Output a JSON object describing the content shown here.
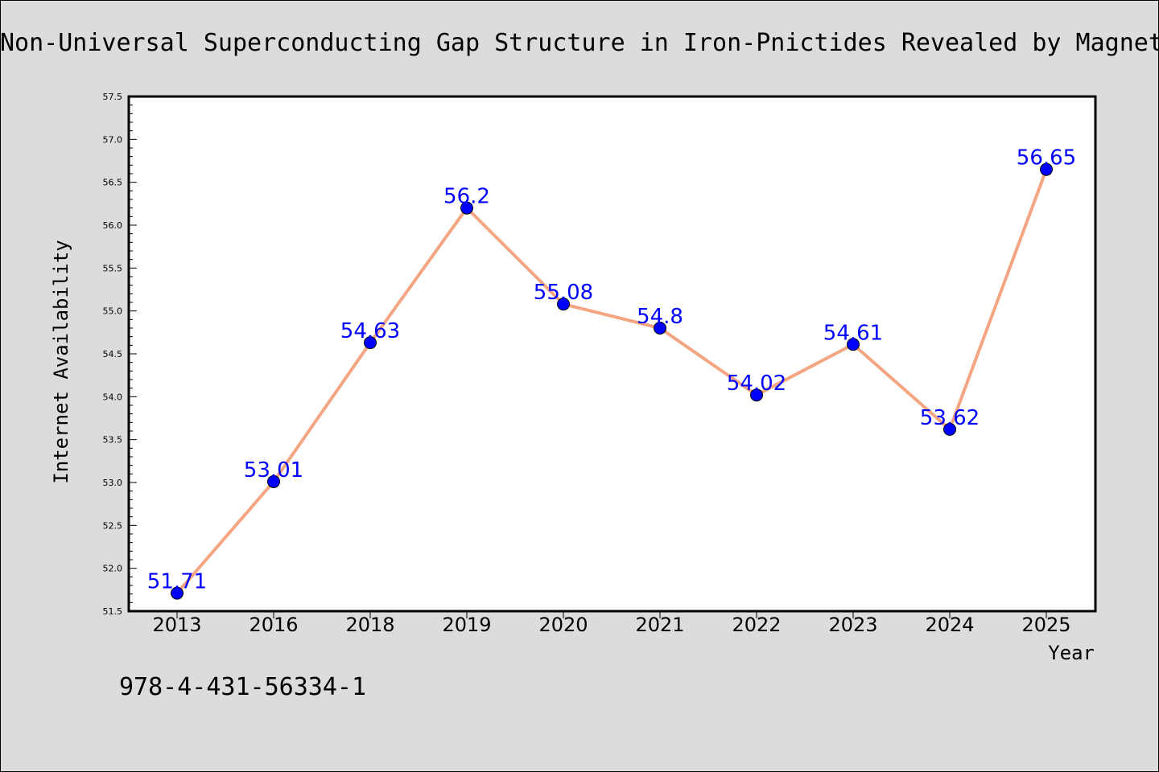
{
  "chart_data": {
    "type": "line",
    "title": "Non-Universal Superconducting Gap Structure in Iron-Pnictides Revealed by Magnet",
    "xlabel": "Year",
    "ylabel": "Internet Availability",
    "categories": [
      "2013",
      "2016",
      "2018",
      "2019",
      "2020",
      "2021",
      "2022",
      "2023",
      "2024",
      "2025"
    ],
    "series": [
      {
        "values": [
          51.71,
          53.01,
          54.63,
          56.2,
          55.08,
          54.8,
          54.02,
          54.61,
          53.62,
          56.65
        ],
        "data_labels": [
          "51.71",
          "53.01",
          "54.63",
          "56.2",
          "55.08",
          "54.8",
          "54.02",
          "54.61",
          "53.62",
          "56.65"
        ],
        "line_color": "#f4a582",
        "marker_color": "#0000ff",
        "label_color": "#0000ff"
      }
    ],
    "ylim": [
      51.5,
      57.5
    ],
    "yticks": [
      "51.5",
      "52.0",
      "52.5",
      "53.0",
      "53.5",
      "54.0",
      "54.5",
      "55.0",
      "55.5",
      "56.0",
      "56.5",
      "57.0",
      "57.5"
    ],
    "grid": false,
    "legend": false
  },
  "footnote": "978-4-431-56334-1",
  "colors": {
    "background": "#dcdcdc",
    "plot_background": "#ffffff",
    "frame": "#000000"
  }
}
